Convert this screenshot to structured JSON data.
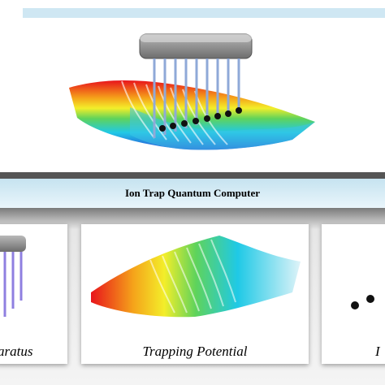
{
  "title": "Ion Trap Quantum Computer",
  "panels": [
    {
      "label": "aratus"
    },
    {
      "label": "Trapping Potential"
    },
    {
      "label": "I"
    }
  ]
}
